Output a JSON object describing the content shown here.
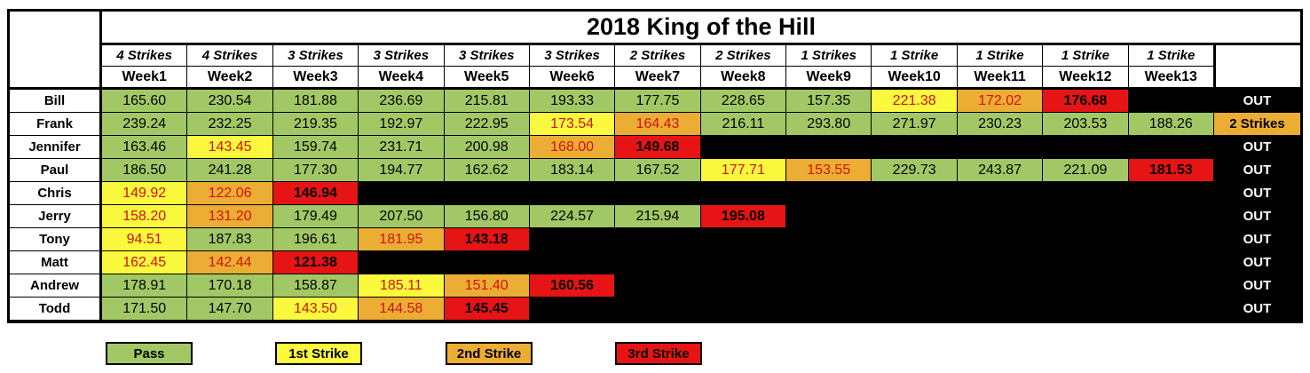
{
  "title": "2018 King of the Hill",
  "colors": {
    "pass": "#A2C865",
    "strike1": "#FBF93E",
    "strike2": "#EBAD33",
    "strike3": "#E61414",
    "red_text": "#D01212",
    "out_bg": "#000000",
    "out_text": "#FFFFFF"
  },
  "columns": [
    {
      "strikes": "4 Strikes",
      "week": "Week1"
    },
    {
      "strikes": "4 Strikes",
      "week": "Week2"
    },
    {
      "strikes": "3 Strikes",
      "week": "Week3"
    },
    {
      "strikes": "3 Strikes",
      "week": "Week4"
    },
    {
      "strikes": "3 Strikes",
      "week": "Week5"
    },
    {
      "strikes": "3 Strikes",
      "week": "Week6"
    },
    {
      "strikes": "2 Strikes",
      "week": "Week7"
    },
    {
      "strikes": "2 Strikes",
      "week": "Week8"
    },
    {
      "strikes": "1 Strikes",
      "week": "Week9"
    },
    {
      "strikes": "1 Strike",
      "week": "Week10"
    },
    {
      "strikes": "1 Strike",
      "week": "Week11"
    },
    {
      "strikes": "1 Strike",
      "week": "Week12"
    },
    {
      "strikes": "1 Strike",
      "week": "Week13"
    }
  ],
  "players": [
    {
      "name": "Bill",
      "status": "OUT",
      "status_style": "out",
      "scores": [
        {
          "v": "165.60",
          "t": "pass"
        },
        {
          "v": "230.54",
          "t": "pass"
        },
        {
          "v": "181.88",
          "t": "pass"
        },
        {
          "v": "236.69",
          "t": "pass"
        },
        {
          "v": "215.81",
          "t": "pass"
        },
        {
          "v": "193.33",
          "t": "pass"
        },
        {
          "v": "177.75",
          "t": "pass"
        },
        {
          "v": "228.65",
          "t": "pass"
        },
        {
          "v": "157.35",
          "t": "pass"
        },
        {
          "v": "221.38",
          "t": "strike1"
        },
        {
          "v": "172.02",
          "t": "strike2"
        },
        {
          "v": "176.68",
          "t": "strike3"
        },
        null
      ]
    },
    {
      "name": "Frank",
      "status": "2 Strikes",
      "status_style": "alive",
      "scores": [
        {
          "v": "239.24",
          "t": "pass"
        },
        {
          "v": "232.25",
          "t": "pass"
        },
        {
          "v": "219.35",
          "t": "pass"
        },
        {
          "v": "192.97",
          "t": "pass"
        },
        {
          "v": "222.95",
          "t": "pass"
        },
        {
          "v": "173.54",
          "t": "strike1"
        },
        {
          "v": "164.43",
          "t": "strike2"
        },
        {
          "v": "216.11",
          "t": "pass"
        },
        {
          "v": "293.80",
          "t": "pass"
        },
        {
          "v": "271.97",
          "t": "pass"
        },
        {
          "v": "230.23",
          "t": "pass"
        },
        {
          "v": "203.53",
          "t": "pass"
        },
        {
          "v": "188.26",
          "t": "pass"
        }
      ]
    },
    {
      "name": "Jennifer",
      "status": "OUT",
      "status_style": "out",
      "scores": [
        {
          "v": "163.46",
          "t": "pass"
        },
        {
          "v": "143.45",
          "t": "strike1"
        },
        {
          "v": "159.74",
          "t": "pass"
        },
        {
          "v": "231.71",
          "t": "pass"
        },
        {
          "v": "200.98",
          "t": "pass"
        },
        {
          "v": "168.00",
          "t": "strike2"
        },
        {
          "v": "149.68",
          "t": "strike3"
        },
        null,
        null,
        null,
        null,
        null,
        null
      ]
    },
    {
      "name": "Paul",
      "status": "OUT",
      "status_style": "out",
      "scores": [
        {
          "v": "186.50",
          "t": "pass"
        },
        {
          "v": "241.28",
          "t": "pass"
        },
        {
          "v": "177.30",
          "t": "pass"
        },
        {
          "v": "194.77",
          "t": "pass"
        },
        {
          "v": "162.62",
          "t": "pass"
        },
        {
          "v": "183.14",
          "t": "pass"
        },
        {
          "v": "167.52",
          "t": "pass"
        },
        {
          "v": "177.71",
          "t": "strike1"
        },
        {
          "v": "153.55",
          "t": "strike2"
        },
        {
          "v": "229.73",
          "t": "pass"
        },
        {
          "v": "243.87",
          "t": "pass"
        },
        {
          "v": "221.09",
          "t": "pass"
        },
        {
          "v": "181.53",
          "t": "strike3"
        }
      ]
    },
    {
      "name": "Chris",
      "status": "OUT",
      "status_style": "out",
      "scores": [
        {
          "v": "149.92",
          "t": "strike1"
        },
        {
          "v": "122.06",
          "t": "strike2"
        },
        {
          "v": "146.94",
          "t": "strike3"
        },
        null,
        null,
        null,
        null,
        null,
        null,
        null,
        null,
        null,
        null
      ]
    },
    {
      "name": "Jerry",
      "status": "OUT",
      "status_style": "out",
      "scores": [
        {
          "v": "158.20",
          "t": "strike1"
        },
        {
          "v": "131.20",
          "t": "strike2"
        },
        {
          "v": "179.49",
          "t": "pass"
        },
        {
          "v": "207.50",
          "t": "pass"
        },
        {
          "v": "156.80",
          "t": "pass"
        },
        {
          "v": "224.57",
          "t": "pass"
        },
        {
          "v": "215.94",
          "t": "pass"
        },
        {
          "v": "195.08",
          "t": "strike3"
        },
        null,
        null,
        null,
        null,
        null
      ]
    },
    {
      "name": "Tony",
      "status": "OUT",
      "status_style": "out",
      "scores": [
        {
          "v": "94.51",
          "t": "strike1"
        },
        {
          "v": "187.83",
          "t": "pass"
        },
        {
          "v": "196.61",
          "t": "pass"
        },
        {
          "v": "181.95",
          "t": "strike2"
        },
        {
          "v": "143.18",
          "t": "strike3"
        },
        null,
        null,
        null,
        null,
        null,
        null,
        null,
        null
      ]
    },
    {
      "name": "Matt",
      "status": "OUT",
      "status_style": "out",
      "scores": [
        {
          "v": "162.45",
          "t": "strike1"
        },
        {
          "v": "142.44",
          "t": "strike2"
        },
        {
          "v": "121.38",
          "t": "strike3"
        },
        null,
        null,
        null,
        null,
        null,
        null,
        null,
        null,
        null,
        null
      ]
    },
    {
      "name": "Andrew",
      "status": "OUT",
      "status_style": "out",
      "scores": [
        {
          "v": "178.91",
          "t": "pass"
        },
        {
          "v": "170.18",
          "t": "pass"
        },
        {
          "v": "158.87",
          "t": "pass"
        },
        {
          "v": "185.11",
          "t": "strike1"
        },
        {
          "v": "151.40",
          "t": "strike2"
        },
        {
          "v": "160.56",
          "t": "strike3"
        },
        null,
        null,
        null,
        null,
        null,
        null,
        null
      ]
    },
    {
      "name": "Todd",
      "status": "OUT",
      "status_style": "out",
      "scores": [
        {
          "v": "171.50",
          "t": "pass"
        },
        {
          "v": "147.70",
          "t": "pass"
        },
        {
          "v": "143.50",
          "t": "strike1"
        },
        {
          "v": "144.58",
          "t": "strike2"
        },
        {
          "v": "145.45",
          "t": "strike3"
        },
        null,
        null,
        null,
        null,
        null,
        null,
        null,
        null
      ]
    }
  ],
  "legend": [
    {
      "label": "Pass",
      "color": "pass"
    },
    {
      "label": "1st Strike",
      "color": "strike1"
    },
    {
      "label": "2nd Strike",
      "color": "strike2"
    },
    {
      "label": "3rd Strike",
      "color": "strike3"
    }
  ]
}
